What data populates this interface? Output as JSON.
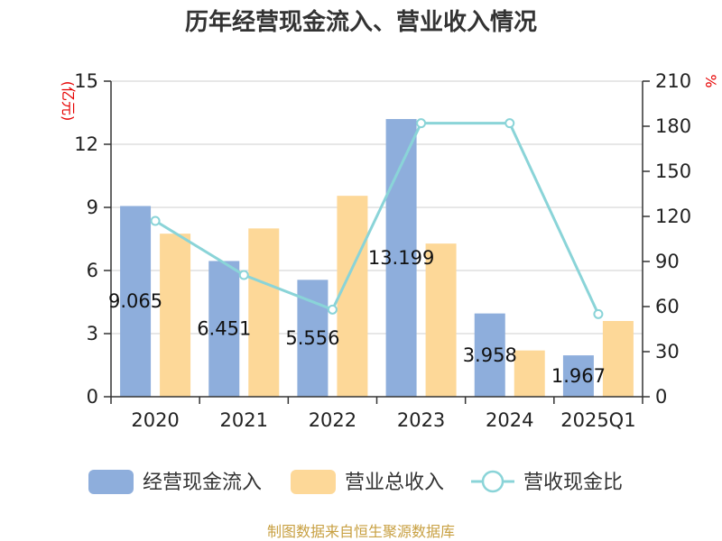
{
  "chart_data": {
    "type": "bar",
    "title": "历年经营现金流入、营业收入情况",
    "categories": [
      "2020",
      "2021",
      "2022",
      "2023",
      "2024",
      "2025Q1"
    ],
    "ylabel_left": "(亿元)",
    "ylabel_right": "%",
    "ylim_left": [
      0,
      15
    ],
    "yticks_left": [
      0,
      3,
      6,
      9,
      12,
      15
    ],
    "ylim_right": [
      0,
      210
    ],
    "yticks_right": [
      0,
      30,
      60,
      90,
      120,
      150,
      180,
      210
    ],
    "grid": true,
    "legend_position": "bottom",
    "series": [
      {
        "name": "经营现金流入",
        "type": "bar",
        "axis": "left",
        "color": "#8eaedc",
        "values": [
          9.065,
          6.451,
          5.556,
          13.199,
          3.958,
          1.967
        ],
        "labels": [
          "9.065",
          "6.451",
          "5.556",
          "13.199",
          "3.958",
          "1.967"
        ]
      },
      {
        "name": "营业总收入",
        "type": "bar",
        "axis": "left",
        "color": "#fdd898",
        "values": [
          7.75,
          8.0,
          9.55,
          7.28,
          2.2,
          3.6
        ]
      },
      {
        "name": "营收现金比",
        "type": "line",
        "axis": "right",
        "color": "#8ad4d8",
        "values": [
          117,
          81,
          58,
          182,
          182,
          55
        ]
      }
    ],
    "source": "制图数据来自恒生聚源数据库"
  }
}
